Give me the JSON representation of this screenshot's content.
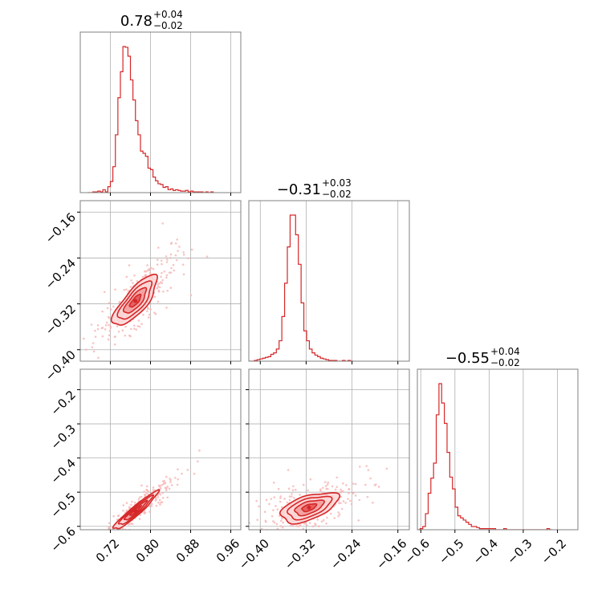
{
  "chart_data": {
    "type": "corner",
    "colors": {
      "main": "#d62728",
      "fill_light": "#fbd5d5",
      "fill_mid": "#f29a9a",
      "fill_dark": "#e35555",
      "scatter": "#f6b5b5",
      "grid": "#b0b0b0",
      "frame": "#808080"
    },
    "grid": true,
    "parameters": [
      {
        "title_value": "0.78",
        "title_plus": "+0.04",
        "title_minus": "−0.02",
        "range": [
          0.66,
          0.98
        ],
        "ticks": [
          0.72,
          0.8,
          0.88,
          0.96
        ],
        "tick_labels": [
          "0.72",
          "0.80",
          "0.88",
          "0.96"
        ],
        "histogram": {
          "edges_start": 0.675,
          "bin_width": 0.005,
          "counts": [
            0,
            0,
            1,
            1,
            2,
            1,
            4,
            1,
            8,
            15,
            35,
            78,
            128,
            163,
            197,
            196,
            184,
            152,
            125,
            97,
            78,
            56,
            53,
            49,
            33,
            31,
            21,
            16,
            12,
            11,
            7,
            8,
            4,
            5,
            3,
            4,
            3,
            2,
            2,
            3,
            1,
            2,
            1,
            1,
            1,
            1,
            0,
            1,
            0,
            1
          ]
        }
      },
      {
        "title_value": "−0.31",
        "title_plus": "+0.03",
        "title_minus": "−0.02",
        "range": [
          -0.42,
          -0.14
        ],
        "ticks": [
          -0.4,
          -0.32,
          -0.24,
          -0.16
        ],
        "tick_labels": [
          "−0.40",
          "−0.32",
          "−0.24",
          "−0.16"
        ],
        "histogram": {
          "edges_start": -0.42,
          "bin_width": 0.0048,
          "counts": [
            0,
            0,
            1,
            2,
            3,
            4,
            5,
            6,
            9,
            11,
            16,
            27,
            59,
            103,
            151,
            193,
            193,
            167,
            128,
            77,
            40,
            27,
            16,
            11,
            8,
            6,
            4,
            3,
            2,
            1,
            1,
            1,
            0,
            0,
            1,
            0,
            1,
            0
          ]
        }
      },
      {
        "title_value": "−0.55",
        "title_plus": "+0.04",
        "title_minus": "−0.02",
        "range": [
          -0.61,
          -0.14
        ],
        "ticks": [
          -0.6,
          -0.5,
          -0.4,
          -0.3,
          -0.2
        ],
        "tick_labels": [
          "−0.6",
          "−0.5",
          "−0.4",
          "−0.3",
          "−0.2"
        ],
        "histogram": {
          "edges_start": -0.61,
          "bin_width": 0.0079,
          "counts": [
            0,
            1,
            3,
            15,
            34,
            48,
            62,
            107,
            136,
            118,
            99,
            72,
            49,
            38,
            21,
            13,
            11,
            9,
            7,
            5,
            3,
            3,
            2,
            1,
            1,
            1,
            1,
            1,
            1,
            0,
            0,
            0,
            1,
            0,
            0,
            0,
            0,
            0,
            0,
            0,
            0,
            0,
            0,
            0,
            0,
            0,
            0,
            0,
            1,
            0
          ]
        }
      }
    ],
    "pairs": [
      {
        "x_param": 0,
        "y_param": 1,
        "mean": [
          0.77,
          -0.315
        ],
        "sd": [
          0.022,
          0.022
        ],
        "corr": 0.78,
        "levels_sigma": [
          0.5,
          1.0,
          1.5,
          2.0
        ]
      },
      {
        "x_param": 0,
        "y_param": 2,
        "mean": [
          0.77,
          -0.555
        ],
        "sd": [
          0.022,
          0.028
        ],
        "corr": 0.95,
        "levels_sigma": [
          0.5,
          1.0,
          1.5,
          2.0
        ]
      },
      {
        "x_param": 1,
        "y_param": 2,
        "mean": [
          -0.315,
          -0.545
        ],
        "sd": [
          0.025,
          0.022
        ],
        "corr": 0.55,
        "levels_sigma": [
          0.5,
          1.0,
          1.5,
          2.0
        ]
      }
    ]
  }
}
